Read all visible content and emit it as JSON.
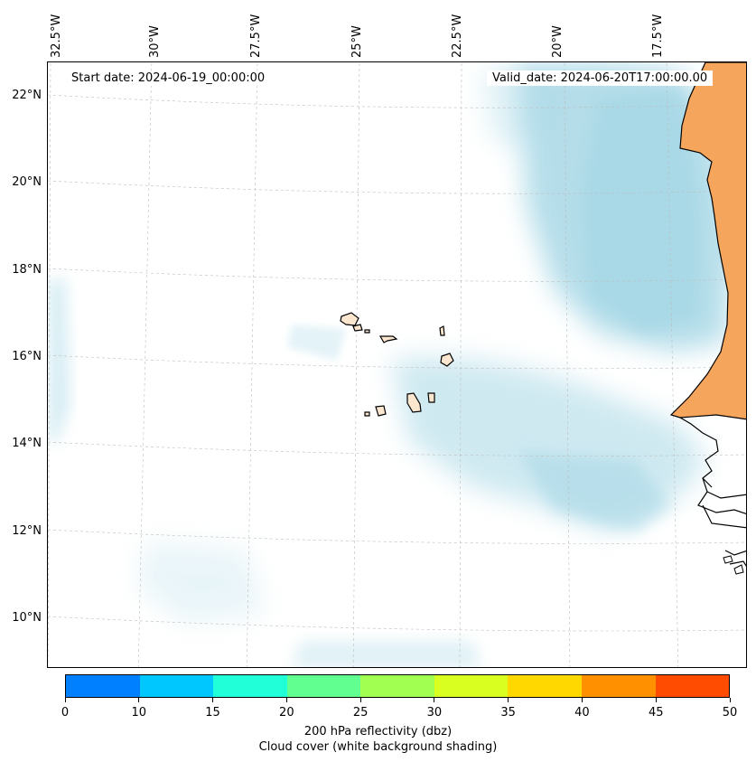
{
  "map": {
    "lon_labels": [
      "32.5°W",
      "30°W",
      "27.5°W",
      "25°W",
      "22.5°W",
      "20°W",
      "17.5°W"
    ],
    "lat_labels": [
      "22°N",
      "20°N",
      "18°N",
      "16°N",
      "14°N",
      "12°N",
      "10°N"
    ],
    "start_date": "Start date: 2024-06-19_00:00:00",
    "valid_date": "Valid_date: 2024-06-20T17:00:00.00",
    "land_color": "#f5a55c",
    "cloud_color": "#a8d8e6"
  },
  "colorbar": {
    "colors": [
      "#0080ff",
      "#00c8ff",
      "#20ffd8",
      "#60ff90",
      "#a0ff50",
      "#d8ff20",
      "#ffd800",
      "#ff9000",
      "#ff4c00"
    ],
    "tick_labels": [
      "0",
      "10",
      "15",
      "20",
      "25",
      "30",
      "35",
      "40",
      "45",
      "50"
    ],
    "title": "200 hPa reflectivity (dbz)",
    "subtitle": "Cloud cover (white background shading)"
  }
}
